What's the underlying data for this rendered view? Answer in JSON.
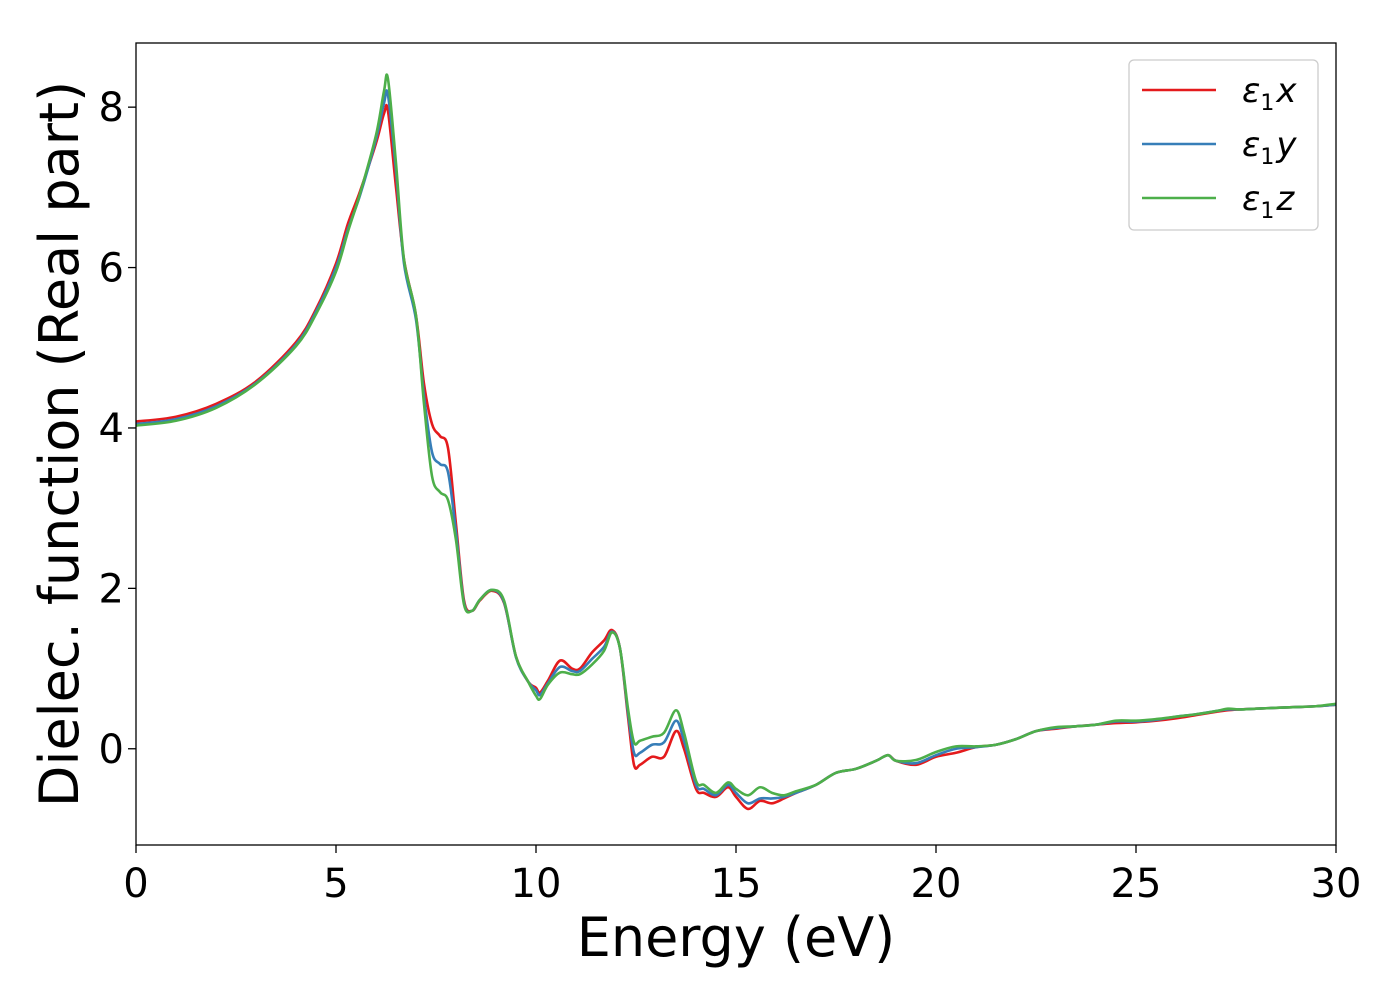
{
  "chart_data": {
    "type": "line",
    "title": "",
    "xlabel": "Energy (eV)",
    "ylabel": "Dielec. function (Real part)",
    "xlim": [
      0,
      30
    ],
    "ylim": [
      -1.2,
      8.8
    ],
    "xticks": [
      0,
      5,
      10,
      15,
      20,
      25,
      30
    ],
    "xtick_labels": [
      "0",
      "5",
      "10",
      "15",
      "20",
      "25",
      "30"
    ],
    "yticks": [
      0,
      2,
      4,
      6,
      8
    ],
    "ytick_labels": [
      "0",
      "2",
      "4",
      "6",
      "8"
    ],
    "grid": false,
    "legend_position": "top-right",
    "x": [
      0,
      1,
      2,
      3,
      4,
      4.5,
      5,
      5.3,
      5.6,
      6,
      6.2,
      6.3,
      6.5,
      6.7,
      7,
      7.2,
      7.4,
      7.6,
      7.8,
      8,
      8.2,
      8.4,
      8.6,
      8.9,
      9.2,
      9.5,
      9.8,
      10,
      10.1,
      10.3,
      10.6,
      10.9,
      11.1,
      11.4,
      11.7,
      11.9,
      12.1,
      12.3,
      12.45,
      12.6,
      12.9,
      13.2,
      13.5,
      13.7,
      14,
      14.2,
      14.5,
      14.8,
      15,
      15.3,
      15.6,
      15.9,
      16.2,
      16.5,
      17,
      17.5,
      18,
      18.5,
      18.8,
      19,
      19.5,
      20,
      20.5,
      21,
      21.5,
      22,
      22.5,
      23,
      23.5,
      24,
      24.5,
      25,
      25.5,
      26,
      26.5,
      27,
      27.3,
      27.6,
      28,
      28.5,
      29,
      29.5,
      30
    ],
    "series": [
      {
        "name": "x",
        "color": "#e41a1c",
        "values": [
          4.08,
          4.14,
          4.3,
          4.58,
          5.07,
          5.48,
          6.05,
          6.55,
          6.95,
          7.55,
          7.92,
          7.95,
          7.0,
          6.1,
          5.4,
          4.55,
          4.05,
          3.9,
          3.75,
          2.8,
          1.85,
          1.72,
          1.85,
          1.97,
          1.82,
          1.15,
          0.84,
          0.76,
          0.7,
          0.85,
          1.1,
          1.0,
          1.0,
          1.2,
          1.35,
          1.48,
          1.25,
          0.4,
          -0.2,
          -0.2,
          -0.1,
          -0.1,
          0.22,
          0.0,
          -0.5,
          -0.55,
          -0.6,
          -0.48,
          -0.6,
          -0.75,
          -0.65,
          -0.68,
          -0.62,
          -0.55,
          -0.45,
          -0.3,
          -0.25,
          -0.15,
          -0.08,
          -0.15,
          -0.2,
          -0.1,
          -0.05,
          0.02,
          0.05,
          0.12,
          0.22,
          0.25,
          0.28,
          0.3,
          0.32,
          0.33,
          0.35,
          0.38,
          0.42,
          0.46,
          0.48,
          0.49,
          0.5,
          0.51,
          0.52,
          0.53,
          0.55
        ]
      },
      {
        "name": "y",
        "color": "#377eb8",
        "values": [
          4.05,
          4.11,
          4.27,
          4.56,
          5.04,
          5.45,
          6.0,
          6.48,
          6.9,
          7.6,
          8.05,
          8.15,
          7.2,
          6.05,
          5.35,
          4.4,
          3.7,
          3.55,
          3.45,
          2.7,
          1.82,
          1.72,
          1.86,
          1.98,
          1.83,
          1.14,
          0.84,
          0.73,
          0.67,
          0.82,
          1.02,
          0.97,
          0.97,
          1.12,
          1.27,
          1.46,
          1.25,
          0.45,
          -0.05,
          -0.05,
          0.05,
          0.08,
          0.35,
          0.1,
          -0.45,
          -0.5,
          -0.58,
          -0.45,
          -0.55,
          -0.68,
          -0.62,
          -0.62,
          -0.6,
          -0.55,
          -0.45,
          -0.3,
          -0.25,
          -0.15,
          -0.08,
          -0.15,
          -0.18,
          -0.08,
          0.0,
          0.02,
          0.05,
          0.12,
          0.22,
          0.26,
          0.28,
          0.3,
          0.34,
          0.34,
          0.36,
          0.4,
          0.43,
          0.47,
          0.49,
          0.49,
          0.5,
          0.51,
          0.52,
          0.53,
          0.55
        ]
      },
      {
        "name": "z",
        "color": "#4daf4a",
        "values": [
          4.03,
          4.09,
          4.25,
          4.55,
          5.02,
          5.42,
          5.95,
          6.45,
          6.92,
          7.65,
          8.2,
          8.35,
          7.3,
          6.1,
          5.4,
          4.3,
          3.4,
          3.2,
          3.1,
          2.6,
          1.8,
          1.72,
          1.86,
          1.98,
          1.85,
          1.15,
          0.84,
          0.66,
          0.62,
          0.8,
          0.95,
          0.93,
          0.93,
          1.05,
          1.22,
          1.45,
          1.25,
          0.5,
          0.08,
          0.1,
          0.15,
          0.2,
          0.48,
          0.2,
          -0.4,
          -0.45,
          -0.55,
          -0.42,
          -0.5,
          -0.58,
          -0.48,
          -0.55,
          -0.58,
          -0.53,
          -0.45,
          -0.3,
          -0.25,
          -0.15,
          -0.08,
          -0.15,
          -0.14,
          -0.04,
          0.03,
          0.03,
          0.05,
          0.12,
          0.22,
          0.27,
          0.28,
          0.3,
          0.35,
          0.35,
          0.37,
          0.4,
          0.43,
          0.47,
          0.5,
          0.49,
          0.5,
          0.51,
          0.52,
          0.53,
          0.56
        ]
      }
    ],
    "legend": [
      {
        "symbol": "ε",
        "subscript": "1",
        "axis": "x",
        "color": "#e41a1c"
      },
      {
        "symbol": "ε",
        "subscript": "1",
        "axis": "y",
        "color": "#377eb8"
      },
      {
        "symbol": "ε",
        "subscript": "1",
        "axis": "z",
        "color": "#4daf4a"
      }
    ]
  }
}
